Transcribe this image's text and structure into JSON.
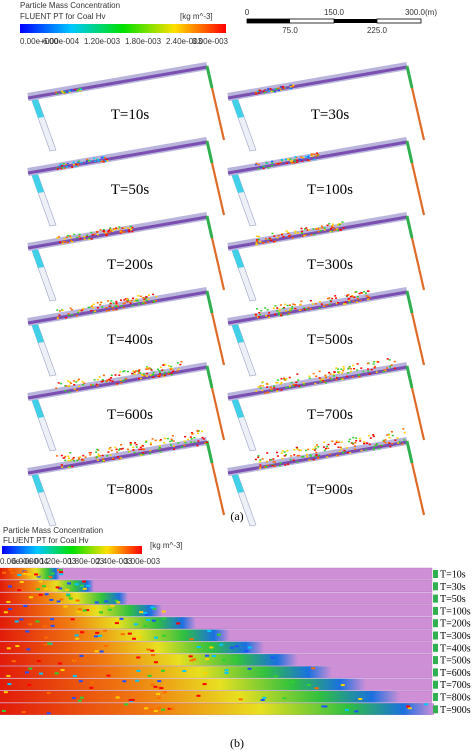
{
  "panel_a": {
    "legend": {
      "title": "Particle Mass Concentration",
      "subtitle": "FLUENT PT for Coal Hv",
      "unit": "[kg m^-3]",
      "ticks": [
        "0.00e+000",
        "6.00e-004",
        "1.20e-003",
        "1.80e-003",
        "2.40e-003",
        "3.00e-003"
      ]
    },
    "scale_bar": {
      "upper_labels": [
        "0",
        "150.0",
        "300.0(m)"
      ],
      "lower_labels": [
        "75.0",
        "225.0"
      ]
    },
    "panels": [
      "T=10s",
      "T=30s",
      "T=50s",
      "T=100s",
      "T=200s",
      "T=300s",
      "T=400s",
      "T=500s",
      "T=600s",
      "T=700s",
      "T=800s",
      "T=900s"
    ],
    "caption": "(a)"
  },
  "panel_b": {
    "legend": {
      "title": "Particle Mass Concentration",
      "subtitle": "FLUENT PT for Coal Hv",
      "unit": "[kg m^-3]",
      "ticks": [
        "0.00e+000",
        "6.00e-004",
        "1.20e-003",
        "1.80e-003",
        "2.40e-003",
        "3.00e-003"
      ]
    },
    "strips": [
      "T=10s",
      "T=30s",
      "T=50s",
      "T=100s",
      "T=200s",
      "T=300s",
      "T=400s",
      "T=500s",
      "T=600s",
      "T=700s",
      "T=800s",
      "T=900s"
    ],
    "caption": "(b)"
  }
}
